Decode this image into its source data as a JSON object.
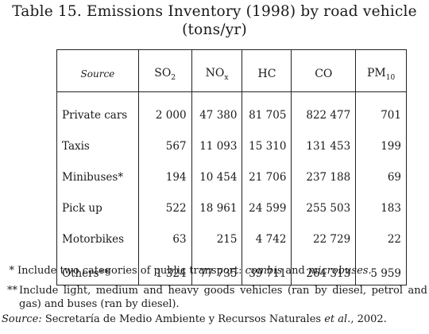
{
  "title": {
    "line1": "Table 15. Emissions Inventory (1998) by road vehicle",
    "line2": "(tons/yr)"
  },
  "table": {
    "header": {
      "source": "Source",
      "so2": {
        "base": "SO",
        "sub": "2"
      },
      "nox": {
        "base": "NO",
        "sub": "x"
      },
      "hc": {
        "base": "HC",
        "sub": ""
      },
      "co": {
        "base": "CO",
        "sub": ""
      },
      "pm10": {
        "base": "PM",
        "sub": "10"
      }
    },
    "rows": [
      {
        "source": "Private cars",
        "so2": "2 000",
        "nox": "47 380",
        "hc": "81 705",
        "co": "822 477",
        "pm10": "701"
      },
      {
        "source": "Taxis",
        "so2": "567",
        "nox": "11 093",
        "hc": "15 310",
        "co": "131 453",
        "pm10": "199"
      },
      {
        "source": "Minibuses*",
        "so2": "194",
        "nox": "10 454",
        "hc": "21 706",
        "co": "237 188",
        "pm10": "69"
      },
      {
        "source": "Pick up",
        "so2": "522",
        "nox": "18 961",
        "hc": "24 599",
        "co": "255 503",
        "pm10": "183"
      },
      {
        "source": "Motorbikes",
        "so2": "63",
        "nox": "215",
        "hc": "4 742",
        "co": "22 729",
        "pm10": "22"
      },
      {
        "source": "Others**",
        "so2": "1 324",
        "nox": "77 735",
        "hc": "39 711",
        "co": "264 313",
        "pm10": "5 959"
      }
    ]
  },
  "notes": {
    "note1": {
      "mark": "*",
      "text_before": "Include two categories of public transport: ",
      "term1": "combis",
      "text_mid": " and ",
      "term2": "microbuses",
      "text_after": "."
    },
    "note2": {
      "mark": "**",
      "text": "Include light, medium and heavy goods vehicles (ran by diesel, petrol and gas) and buses (ran by diesel)."
    },
    "source": {
      "label": "Source:",
      "text_before": " Secretaría de Medio Ambiente y Recursos Naturales ",
      "etal": "et al.",
      "text_after": ", 2002."
    }
  }
}
